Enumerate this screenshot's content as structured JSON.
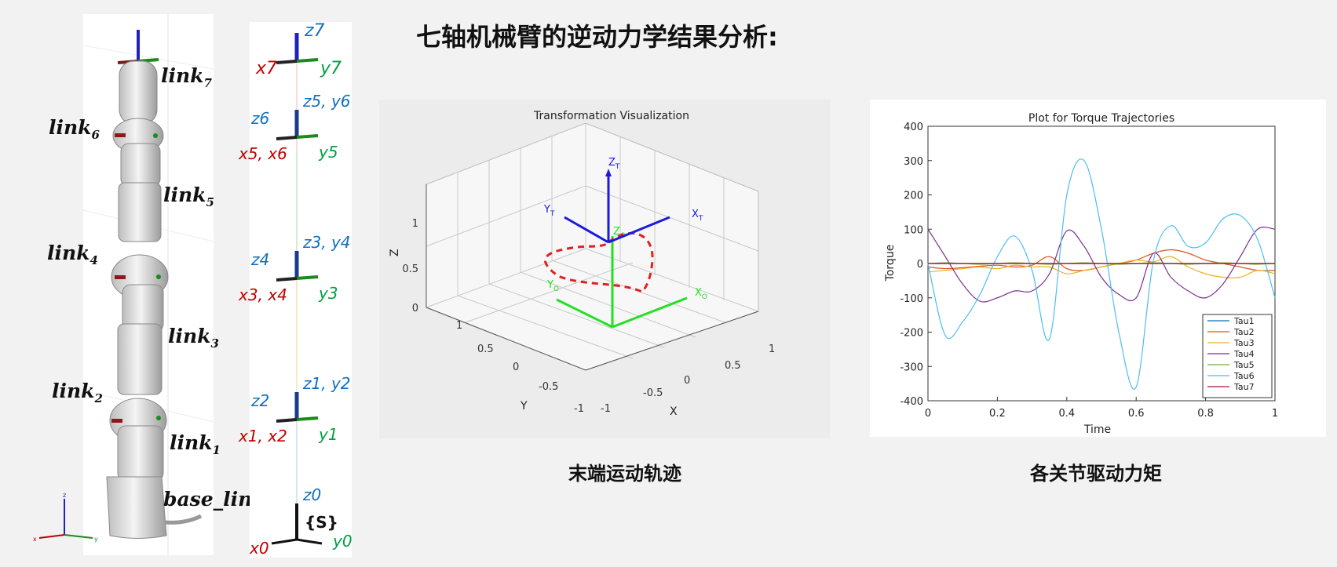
{
  "page": {
    "title": "七轴机械臂的逆动力学结果分析:",
    "caption_left": "末端运动轨迹",
    "caption_right": "各关节驱动力矩"
  },
  "robot": {
    "links": [
      {
        "name": "link",
        "sub": "7"
      },
      {
        "name": "link",
        "sub": "6"
      },
      {
        "name": "link",
        "sub": "5"
      },
      {
        "name": "link",
        "sub": "4"
      },
      {
        "name": "link",
        "sub": "3"
      },
      {
        "name": "link",
        "sub": "2"
      },
      {
        "name": "link",
        "sub": "1"
      }
    ],
    "base_label": "base_link",
    "axis_triad": {
      "x": "x",
      "y": "y",
      "z": "z"
    }
  },
  "frames": {
    "f7": {
      "z": "z7",
      "x": "x7",
      "y": "y7"
    },
    "f56": {
      "z": "z6",
      "zy": "z5, y6",
      "x": "x5, x6",
      "y": "y5"
    },
    "f34": {
      "z": "z4",
      "zy": "z3, y4",
      "x": "x3, x4",
      "y": "y3"
    },
    "f12": {
      "z": "z2",
      "zy": "z1, y2",
      "x": "x1, x2",
      "y": "y1"
    },
    "f0": {
      "z": "z0",
      "x": "x0",
      "y": "y0",
      "s": "{S}"
    },
    "colors": {
      "x": "#c00000",
      "y": "#00a040",
      "z": "#1070c0"
    }
  },
  "viz": {
    "title": "Transformation Visualization",
    "xlabel": "X",
    "ylabel": "Y",
    "zlabel": "Z",
    "z_ticks": [
      "0",
      "0.5",
      "1"
    ],
    "y_ticks": [
      "1",
      "0.5",
      "0",
      "-0.5",
      "-1"
    ],
    "x_ticks": [
      "-1",
      "-0.5",
      "0",
      "0.5",
      "1"
    ],
    "frame_T": {
      "x": "X",
      "y": "Y",
      "z": "Z",
      "sub": "T"
    },
    "frame_O": {
      "x": "X",
      "y": "Y",
      "z": "Z",
      "sub": "O"
    }
  },
  "chart_data": {
    "type": "line",
    "title": "Plot for Torque Trajectories",
    "xlabel": "Time",
    "ylabel": "Torque",
    "xlim": [
      0,
      1
    ],
    "ylim": [
      -400,
      400
    ],
    "x_ticks": [
      "0",
      "0.2",
      "0.4",
      "0.6",
      "0.8",
      "1"
    ],
    "y_ticks": [
      "400",
      "300",
      "200",
      "100",
      "0",
      "-100",
      "-200",
      "-300",
      "-400"
    ],
    "legend_position": "bottom-right",
    "x": [
      0,
      0.05,
      0.1,
      0.15,
      0.2,
      0.25,
      0.3,
      0.35,
      0.4,
      0.45,
      0.5,
      0.55,
      0.6,
      0.65,
      0.7,
      0.75,
      0.8,
      0.85,
      0.9,
      0.95,
      1
    ],
    "series": [
      {
        "name": "Tau1",
        "color": "#0072bd",
        "values": [
          0,
          0,
          0,
          0,
          0,
          0,
          0,
          0,
          0,
          0,
          0,
          0,
          0,
          0,
          0,
          0,
          0,
          0,
          0,
          0,
          0
        ]
      },
      {
        "name": "Tau2",
        "color": "#d95319",
        "values": [
          -10,
          -15,
          -12,
          -8,
          -5,
          -10,
          -5,
          20,
          -15,
          -20,
          -10,
          0,
          10,
          30,
          40,
          30,
          10,
          0,
          -10,
          -20,
          -20
        ]
      },
      {
        "name": "Tau3",
        "color": "#edb120",
        "values": [
          -25,
          -20,
          -15,
          -10,
          -15,
          -5,
          -10,
          -10,
          -30,
          -20,
          -10,
          0,
          10,
          5,
          20,
          -10,
          -30,
          -40,
          -40,
          -20,
          -30
        ]
      },
      {
        "name": "Tau4",
        "color": "#7e2f8e",
        "values": [
          100,
          20,
          -60,
          -110,
          -100,
          -80,
          -80,
          -30,
          95,
          50,
          -40,
          -90,
          -100,
          30,
          -40,
          -80,
          -100,
          -60,
          20,
          100,
          100
        ]
      },
      {
        "name": "Tau5",
        "color": "#77ac30",
        "values": [
          0,
          2,
          0,
          -2,
          0,
          2,
          0,
          -2,
          0,
          2,
          0,
          -2,
          0,
          2,
          0,
          -2,
          0,
          2,
          0,
          -2,
          0
        ]
      },
      {
        "name": "Tau6",
        "color": "#4dbeee",
        "values": [
          0,
          -210,
          -170,
          -90,
          20,
          80,
          -20,
          -220,
          200,
          300,
          100,
          -200,
          -360,
          10,
          110,
          50,
          60,
          130,
          140,
          70,
          -100
        ]
      },
      {
        "name": "Tau7",
        "color": "#a2142f",
        "values": [
          0,
          0,
          0,
          0,
          0,
          0,
          0,
          0,
          0,
          0,
          0,
          0,
          0,
          0,
          0,
          0,
          0,
          0,
          0,
          0,
          0
        ]
      }
    ]
  }
}
